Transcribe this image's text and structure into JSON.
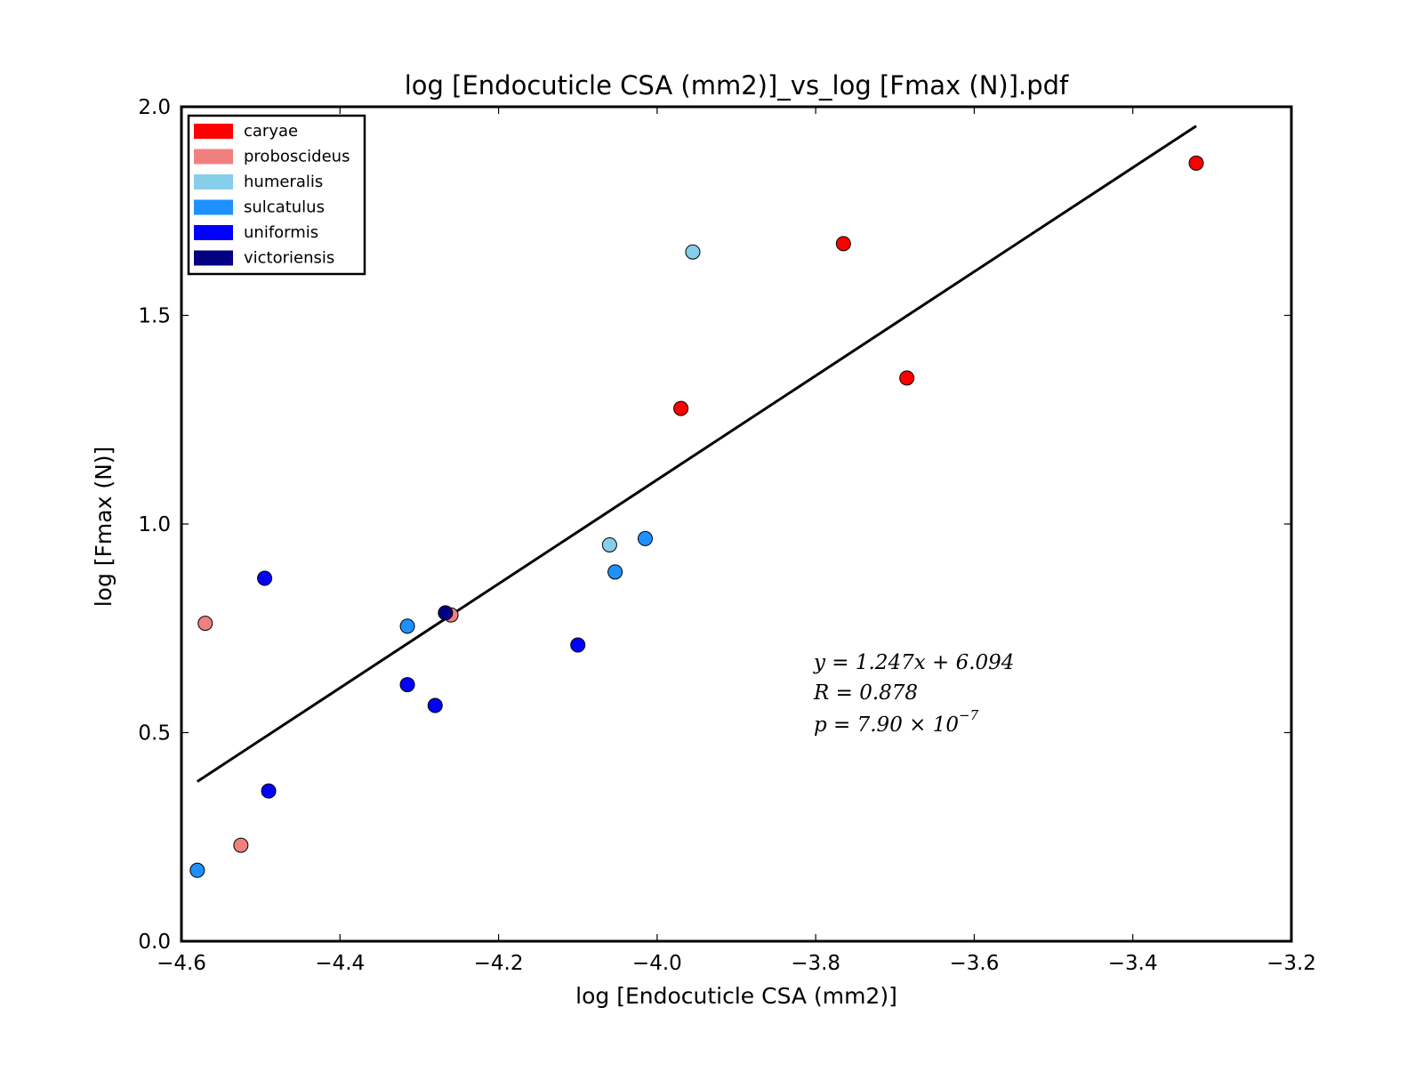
{
  "chart_data": {
    "type": "scatter",
    "title": "log [Endocuticle CSA (mm2)]_vs_log [Fmax (N)].pdf",
    "xlabel": "log [Endocuticle CSA (mm2)]",
    "ylabel": "log [Fmax (N)]",
    "xlim": [
      -4.6,
      -3.2
    ],
    "ylim": [
      0.0,
      2.0
    ],
    "xticks": [
      -4.6,
      -4.4,
      -4.2,
      -4.0,
      -3.8,
      -3.6,
      -3.4,
      -3.2
    ],
    "xtick_labels": [
      "−4.6",
      "−4.4",
      "−4.2",
      "−4.0",
      "−3.8",
      "−3.6",
      "−3.4",
      "−3.2"
    ],
    "yticks": [
      0.0,
      0.5,
      1.0,
      1.5,
      2.0
    ],
    "ytick_labels": [
      "0.0",
      "0.5",
      "1.0",
      "1.5",
      "2.0"
    ],
    "grid": false,
    "legend_position": "top-left",
    "series": [
      {
        "name": "caryae",
        "color": "#ff0000",
        "points": [
          {
            "x": -3.32,
            "y": 1.865
          },
          {
            "x": -3.765,
            "y": 1.672
          },
          {
            "x": -3.685,
            "y": 1.35
          },
          {
            "x": -3.97,
            "y": 1.277
          }
        ]
      },
      {
        "name": "proboscideus",
        "color": "#f08080",
        "points": [
          {
            "x": -4.57,
            "y": 0.762
          },
          {
            "x": -4.26,
            "y": 0.782
          },
          {
            "x": -4.525,
            "y": 0.23
          }
        ]
      },
      {
        "name": "humeralis",
        "color": "#87ceeb",
        "points": [
          {
            "x": -3.955,
            "y": 1.652
          },
          {
            "x": -4.06,
            "y": 0.95
          }
        ]
      },
      {
        "name": "sulcatulus",
        "color": "#1e90ff",
        "points": [
          {
            "x": -4.015,
            "y": 0.965
          },
          {
            "x": -4.053,
            "y": 0.885
          },
          {
            "x": -4.315,
            "y": 0.755
          },
          {
            "x": -4.58,
            "y": 0.17
          }
        ]
      },
      {
        "name": "uniformis",
        "color": "#0000ff",
        "points": [
          {
            "x": -4.495,
            "y": 0.87
          },
          {
            "x": -4.1,
            "y": 0.71
          },
          {
            "x": -4.315,
            "y": 0.615
          },
          {
            "x": -4.28,
            "y": 0.565
          },
          {
            "x": -4.49,
            "y": 0.36
          }
        ]
      },
      {
        "name": "victoriensis",
        "color": "#000080",
        "points": [
          {
            "x": -4.267,
            "y": 0.787
          }
        ]
      }
    ],
    "fit_line": {
      "slope": 1.247,
      "intercept": 6.094,
      "x_start": -4.58,
      "x_end": -3.32,
      "color": "#000000"
    },
    "annotations": {
      "line1": "y = 1.247x + 6.094",
      "line2": "R = 0.878",
      "line3_base": "p = 7.90 × 10",
      "line3_exp": "−7"
    }
  }
}
